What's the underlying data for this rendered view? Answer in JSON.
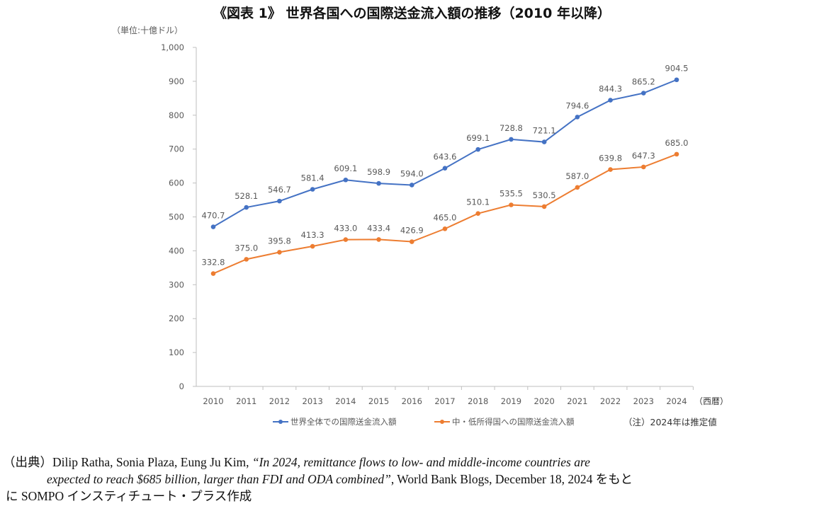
{
  "chart_data": {
    "type": "line",
    "title": "《図表 1》 世界各国への国際送金流入額の推移（2010 年以降）",
    "ylabel": "（単位:十億ドル）",
    "xlabel": "（西暦）",
    "categories": [
      "2010",
      "2011",
      "2012",
      "2013",
      "2014",
      "2015",
      "2016",
      "2017",
      "2018",
      "2019",
      "2020",
      "2021",
      "2022",
      "2023",
      "2024"
    ],
    "ylim": [
      0,
      1000
    ],
    "yticks": [
      0,
      100,
      200,
      300,
      400,
      500,
      600,
      700,
      800,
      900,
      1000
    ],
    "ytick_labels": [
      "0",
      "100",
      "200",
      "300",
      "400",
      "500",
      "600",
      "700",
      "800",
      "900",
      "1,000"
    ],
    "grid": false,
    "legend_position": "bottom",
    "series": [
      {
        "name": "世界全体での国際送金流入額",
        "color": "#4472C4",
        "values": [
          470.7,
          528.1,
          546.7,
          581.4,
          609.1,
          598.9,
          594.0,
          643.6,
          699.1,
          728.8,
          721.1,
          794.6,
          844.3,
          865.2,
          904.5
        ]
      },
      {
        "name": "中・低所得国への国際送金流入額",
        "color": "#ED7D31",
        "values": [
          332.8,
          375.0,
          395.8,
          413.3,
          433.0,
          433.4,
          426.9,
          465.0,
          510.1,
          535.5,
          530.5,
          587.0,
          639.8,
          647.3,
          685.0
        ]
      }
    ],
    "note": "（注）2024年は推定値"
  },
  "source": {
    "prefix": "（出典）",
    "authors": "Dilip Ratha, Sonia Plaza, Eung Ju Kim, ",
    "article_line1": "“In 2024, remittance flows to low- and middle-income countries are",
    "article_line2": "expected to reach $685 billion, larger than FDI and ODA combined”",
    "after_line2": ", World Bank Blogs, December 18, 2024 をもと",
    "line3": "に SOMPO インスティチュート・プラス作成"
  }
}
